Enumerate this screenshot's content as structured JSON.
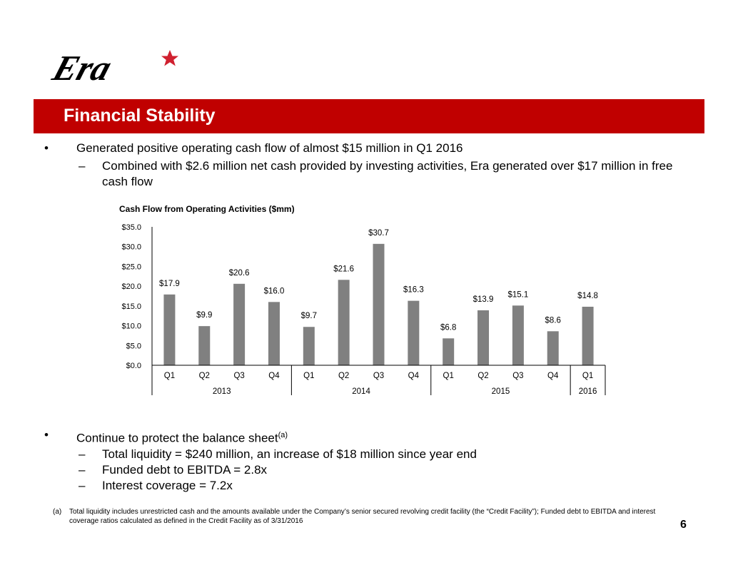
{
  "brand": {
    "logo_text": "Era",
    "star_color": "#d0202f",
    "accent_color": "#c00000"
  },
  "title": "Financial Stability",
  "bullets_top": [
    {
      "level": 1,
      "marker": "•",
      "text": "Generated positive operating cash flow of almost $15 million in Q1 2016"
    },
    {
      "level": 2,
      "marker": "–",
      "text": "Combined with $2.6 million net cash provided by investing activities, Era generated over $17 million in free cash flow"
    }
  ],
  "bullets_bottom": [
    {
      "level": 1,
      "marker": "•",
      "text": "Continue to protect the balance sheet",
      "sup": "(a)"
    },
    {
      "level": 2,
      "marker": "–",
      "text": "Total liquidity = $240 million, an increase of $18 million since year end"
    },
    {
      "level": 2,
      "marker": "–",
      "text": "Funded debt to EBITDA = 2.8x"
    },
    {
      "level": 2,
      "marker": "–",
      "text": "Interest coverage = 7.2x"
    }
  ],
  "footnote": {
    "tag": "(a)",
    "text": "Total liquidity includes unrestricted cash and the amounts available under the Company’s senior secured revolving credit facility (the “Credit Facility”); Funded debt to EBITDA and interest coverage ratios calculated as defined in the Credit Facility as of 3/31/2016"
  },
  "page_number": "6",
  "chart_data": {
    "type": "bar",
    "title": "Cash Flow from Operating Activities ($mm)",
    "xlabel": "",
    "ylabel": "",
    "ylim": [
      0,
      35
    ],
    "y_ticks": [
      "$0.0",
      "$5.0",
      "$10.0",
      "$15.0",
      "$20.0",
      "$25.0",
      "$30.0",
      "$35.0"
    ],
    "categories": [
      "Q1",
      "Q2",
      "Q3",
      "Q4",
      "Q1",
      "Q2",
      "Q3",
      "Q4",
      "Q1",
      "Q2",
      "Q3",
      "Q4",
      "Q1"
    ],
    "groups": [
      {
        "label": "2013",
        "count": 4
      },
      {
        "label": "2014",
        "count": 4
      },
      {
        "label": "2015",
        "count": 4
      },
      {
        "label": "2016",
        "count": 1
      }
    ],
    "values": [
      17.9,
      9.9,
      20.6,
      16.0,
      9.7,
      21.6,
      30.7,
      16.3,
      6.8,
      13.9,
      15.1,
      8.6,
      14.8
    ],
    "data_labels": [
      "$17.9",
      "$9.9",
      "$20.6",
      "$16.0",
      "$9.7",
      "$21.6",
      "$30.7",
      "$16.3",
      "$6.8",
      "$13.9",
      "$15.1",
      "$8.6",
      "$14.8"
    ],
    "bar_color": "#808080",
    "grid": false,
    "legend": "none"
  }
}
